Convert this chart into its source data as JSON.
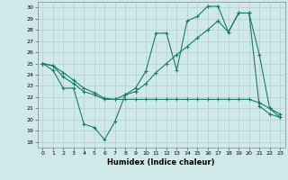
{
  "xlabel": "Humidex (Indice chaleur)",
  "background_color": "#cfe9e9",
  "grid_color": "#b0d0d0",
  "line_color": "#1a7a6a",
  "xlim": [
    -0.5,
    23.5
  ],
  "ylim": [
    17.5,
    30.5
  ],
  "xticks": [
    0,
    1,
    2,
    3,
    4,
    5,
    6,
    7,
    8,
    9,
    10,
    11,
    12,
    13,
    14,
    15,
    16,
    17,
    18,
    19,
    20,
    21,
    22,
    23
  ],
  "yticks": [
    18,
    19,
    20,
    21,
    22,
    23,
    24,
    25,
    26,
    27,
    28,
    29,
    30
  ],
  "series1_x": [
    0,
    1,
    2,
    3,
    4,
    5,
    6,
    7,
    8,
    9,
    10,
    11,
    12,
    13,
    14,
    15,
    16,
    17,
    18,
    19,
    20,
    21,
    22,
    23
  ],
  "series1_y": [
    25.0,
    24.4,
    22.8,
    22.8,
    19.6,
    19.3,
    18.2,
    19.8,
    22.2,
    22.8,
    24.3,
    27.7,
    27.7,
    24.4,
    28.8,
    29.2,
    30.1,
    30.1,
    27.8,
    29.5,
    29.5,
    21.2,
    20.5,
    20.2
  ],
  "series2_x": [
    0,
    1,
    2,
    3,
    4,
    5,
    6,
    7,
    8,
    9,
    10,
    11,
    12,
    13,
    14,
    15,
    16,
    17,
    18,
    19,
    20,
    21,
    22,
    23
  ],
  "series2_y": [
    25.0,
    24.8,
    24.2,
    23.5,
    22.8,
    22.4,
    21.9,
    21.8,
    21.8,
    21.8,
    21.8,
    21.8,
    21.8,
    21.8,
    21.8,
    21.8,
    21.8,
    21.8,
    21.8,
    21.8,
    21.8,
    21.5,
    21.0,
    20.5
  ],
  "series3_x": [
    0,
    1,
    2,
    3,
    4,
    5,
    6,
    7,
    8,
    9,
    10,
    11,
    12,
    13,
    14,
    15,
    16,
    17,
    18,
    19,
    20,
    21,
    22,
    23
  ],
  "series3_y": [
    25.0,
    24.8,
    23.8,
    23.2,
    22.5,
    22.2,
    21.8,
    21.8,
    22.2,
    22.5,
    23.2,
    24.2,
    25.0,
    25.8,
    26.5,
    27.3,
    28.0,
    28.8,
    27.8,
    29.5,
    29.5,
    25.8,
    21.0,
    20.2
  ]
}
